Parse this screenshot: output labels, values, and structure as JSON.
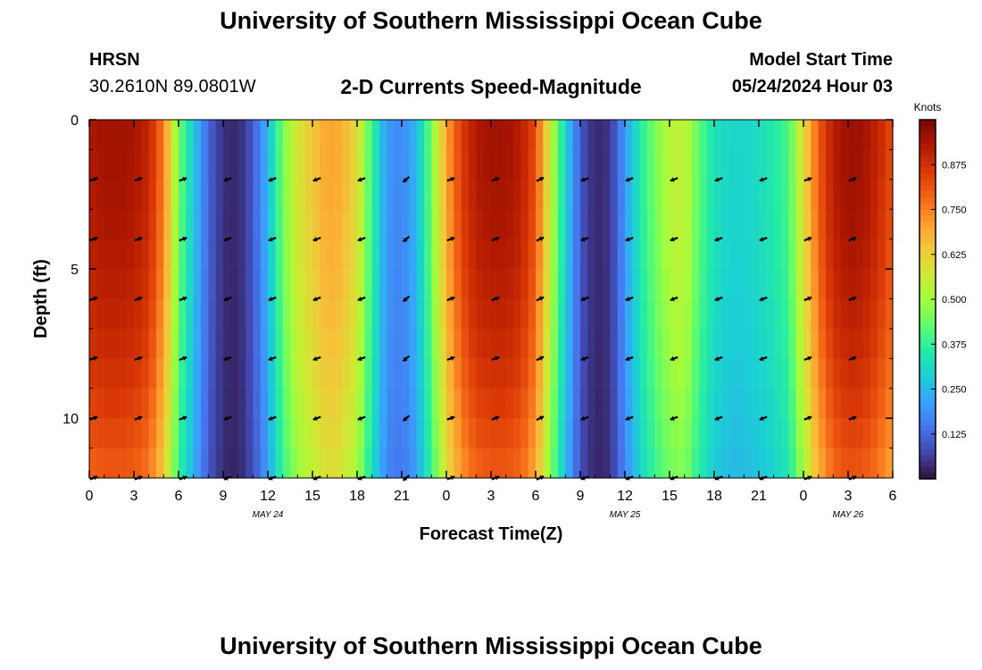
{
  "header": {
    "title": "University of Southern Mississippi Ocean Cube",
    "station": "HRSN",
    "coordinates": "30.2610N  89.0801W",
    "subtitle": "2-D Currents Speed-Magnitude",
    "model_start_label": "Model Start Time",
    "model_start_value": "05/24/2024 Hour 03"
  },
  "footer": {
    "title": "University of Southern Mississippi Ocean Cube"
  },
  "colors": {
    "palette": [
      "#30123b",
      "#4145ab",
      "#4675ed",
      "#39a2fc",
      "#1bcfd4",
      "#24eca6",
      "#61fc6c",
      "#a4fc3b",
      "#d1e834",
      "#f3c63a",
      "#fe9b2d",
      "#f36315",
      "#d93806",
      "#b11901",
      "#7a0403"
    ]
  },
  "chart_data": {
    "type": "heatmap",
    "title": "2-D Currents Speed-Magnitude",
    "xlabel": "Forecast Time(Z)",
    "ylabel": "Depth (ft)",
    "x_tick_labels": [
      "0",
      "3",
      "6",
      "9",
      "12",
      "15",
      "18",
      "21",
      "0",
      "3",
      "6",
      "9",
      "12",
      "15",
      "18",
      "21",
      "0",
      "3",
      "6"
    ],
    "x_range_hours": [
      0,
      54
    ],
    "y_tick_labels": [
      "0",
      "5",
      "10"
    ],
    "y_tick_values": [
      0,
      5,
      10
    ],
    "y_range_ft": [
      0,
      12
    ],
    "date_labels": [
      {
        "text": "MAY 24",
        "hour": 12
      },
      {
        "text": "MAY 25",
        "hour": 36
      },
      {
        "text": "MAY 26",
        "hour": 51
      }
    ],
    "colorbar": {
      "label": "Knots",
      "range": [
        0.0,
        1.0
      ],
      "tick_labels": [
        "0.875",
        "0.750",
        "0.625",
        "0.500",
        "0.375",
        "0.250",
        "0.125"
      ],
      "tick_values": [
        0.875,
        0.75,
        0.625,
        0.5,
        0.375,
        0.25,
        0.125
      ]
    },
    "speed_by_hour": [
      0.93,
      0.95,
      0.95,
      0.94,
      0.9,
      0.75,
      0.45,
      0.28,
      0.12,
      0.04,
      0.03,
      0.1,
      0.25,
      0.45,
      0.58,
      0.64,
      0.7,
      0.68,
      0.6,
      0.38,
      0.2,
      0.17,
      0.25,
      0.45,
      0.7,
      0.85,
      0.93,
      0.95,
      0.95,
      0.92,
      0.82,
      0.55,
      0.3,
      0.1,
      0.03,
      0.05,
      0.2,
      0.35,
      0.45,
      0.53,
      0.55,
      0.42,
      0.33,
      0.3,
      0.3,
      0.32,
      0.35,
      0.4,
      0.6,
      0.8,
      0.92,
      0.96,
      0.95,
      0.9,
      0.82
    ],
    "arrow_hours": [
      0,
      3,
      6,
      9,
      12,
      15,
      18,
      21,
      24,
      27,
      30,
      33,
      36,
      39,
      42,
      45,
      48,
      51
    ],
    "arrow_depths_ft": [
      2,
      4,
      6,
      8,
      10,
      12
    ],
    "arrow_direction_deg": [
      20,
      20,
      20,
      200,
      200,
      200,
      200,
      220,
      20,
      20,
      25,
      200,
      200,
      200,
      200,
      200,
      20,
      20
    ]
  }
}
